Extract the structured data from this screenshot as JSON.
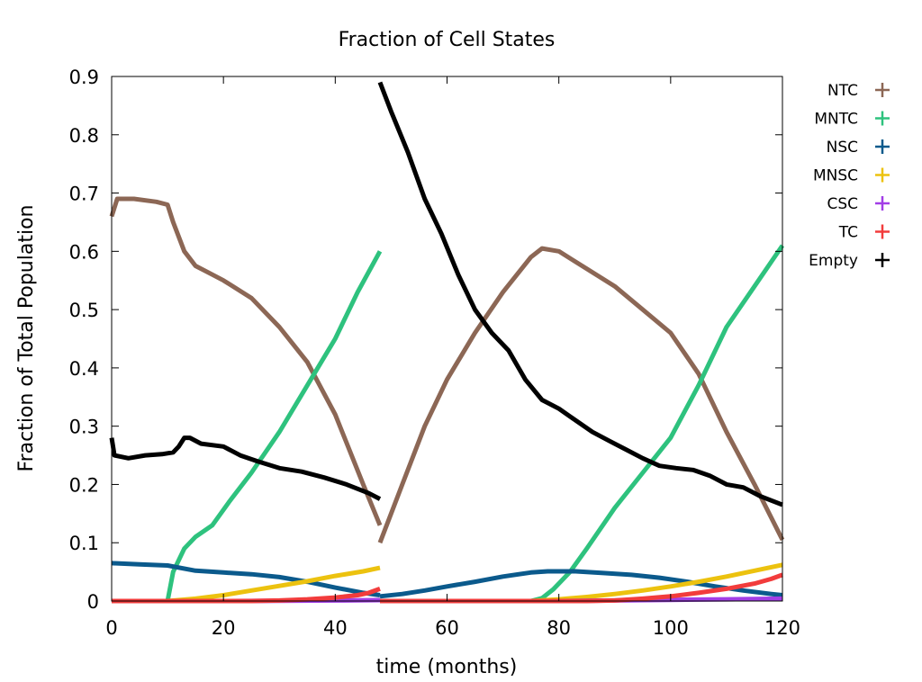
{
  "chart_data": {
    "type": "scatter",
    "title": "Fraction of Cell States",
    "xlabel": "time (months)",
    "ylabel": "Fraction of Total Population",
    "xlim": [
      0,
      120
    ],
    "ylim": [
      0,
      0.9
    ],
    "xticks": [
      "0",
      "20",
      "40",
      "60",
      "80",
      "100",
      "120"
    ],
    "yticks": [
      "0",
      "0.1",
      "0.2",
      "0.3",
      "0.4",
      "0.5",
      "0.6",
      "0.7",
      "0.8",
      "0.9"
    ],
    "grid": false,
    "legend_position": "outside-right",
    "series": [
      {
        "name": "NTC",
        "color": "#8c6755",
        "segments": [
          [
            [
              0,
              0.66
            ],
            [
              1,
              0.69
            ],
            [
              4,
              0.69
            ],
            [
              8,
              0.685
            ],
            [
              10,
              0.68
            ],
            [
              11,
              0.65
            ],
            [
              13,
              0.6
            ],
            [
              15,
              0.575
            ],
            [
              18,
              0.56
            ],
            [
              20,
              0.55
            ],
            [
              25,
              0.52
            ],
            [
              30,
              0.47
            ],
            [
              35,
              0.41
            ],
            [
              40,
              0.32
            ],
            [
              45,
              0.2
            ],
            [
              48,
              0.13
            ]
          ],
          [
            [
              48,
              0.1
            ],
            [
              52,
              0.2
            ],
            [
              56,
              0.3
            ],
            [
              60,
              0.38
            ],
            [
              65,
              0.46
            ],
            [
              70,
              0.53
            ],
            [
              75,
              0.59
            ],
            [
              77,
              0.605
            ],
            [
              80,
              0.6
            ],
            [
              85,
              0.57
            ],
            [
              90,
              0.54
            ],
            [
              95,
              0.5
            ],
            [
              100,
              0.46
            ],
            [
              105,
              0.39
            ],
            [
              110,
              0.29
            ],
            [
              115,
              0.2
            ],
            [
              120,
              0.105
            ]
          ]
        ]
      },
      {
        "name": "MNTC",
        "color": "#2ec27e",
        "segments": [
          [
            [
              10,
              0
            ],
            [
              11,
              0.05
            ],
            [
              13,
              0.09
            ],
            [
              15,
              0.11
            ],
            [
              18,
              0.13
            ],
            [
              21,
              0.17
            ],
            [
              25,
              0.22
            ],
            [
              30,
              0.29
            ],
            [
              35,
              0.37
            ],
            [
              40,
              0.45
            ],
            [
              44,
              0.53
            ],
            [
              48,
              0.6
            ]
          ],
          [
            [
              48,
              0
            ],
            [
              75,
              0
            ],
            [
              77,
              0.005
            ],
            [
              79,
              0.02
            ],
            [
              82,
              0.05
            ],
            [
              85,
              0.09
            ],
            [
              90,
              0.16
            ],
            [
              95,
              0.22
            ],
            [
              100,
              0.28
            ],
            [
              105,
              0.37
            ],
            [
              110,
              0.47
            ],
            [
              115,
              0.54
            ],
            [
              120,
              0.61
            ]
          ]
        ]
      },
      {
        "name": "NSC",
        "color": "#0b5a8c",
        "segments": [
          [
            [
              0,
              0.065
            ],
            [
              5,
              0.063
            ],
            [
              10,
              0.061
            ],
            [
              15,
              0.052
            ],
            [
              20,
              0.049
            ],
            [
              25,
              0.046
            ],
            [
              30,
              0.041
            ],
            [
              35,
              0.033
            ],
            [
              40,
              0.023
            ],
            [
              45,
              0.014
            ],
            [
              48,
              0.01
            ]
          ],
          [
            [
              48,
              0.008
            ],
            [
              52,
              0.012
            ],
            [
              56,
              0.018
            ],
            [
              60,
              0.025
            ],
            [
              65,
              0.033
            ],
            [
              70,
              0.042
            ],
            [
              75,
              0.049
            ],
            [
              78,
              0.051
            ],
            [
              83,
              0.051
            ],
            [
              88,
              0.048
            ],
            [
              93,
              0.045
            ],
            [
              98,
              0.04
            ],
            [
              103,
              0.033
            ],
            [
              108,
              0.025
            ],
            [
              113,
              0.018
            ],
            [
              118,
              0.012
            ],
            [
              120,
              0.01
            ]
          ]
        ]
      },
      {
        "name": "MNSC",
        "color": "#ecc20f",
        "segments": [
          [
            [
              10,
              0
            ],
            [
              15,
              0.004
            ],
            [
              20,
              0.01
            ],
            [
              25,
              0.018
            ],
            [
              30,
              0.026
            ],
            [
              35,
              0.034
            ],
            [
              40,
              0.043
            ],
            [
              45,
              0.051
            ],
            [
              48,
              0.057
            ]
          ],
          [
            [
              48,
              0
            ],
            [
              75,
              0
            ],
            [
              80,
              0.003
            ],
            [
              85,
              0.007
            ],
            [
              90,
              0.012
            ],
            [
              95,
              0.018
            ],
            [
              100,
              0.025
            ],
            [
              105,
              0.033
            ],
            [
              110,
              0.042
            ],
            [
              115,
              0.052
            ],
            [
              120,
              0.062
            ]
          ]
        ]
      },
      {
        "name": "CSC",
        "color": "#a23ee6",
        "segments": [
          [
            [
              0,
              0
            ],
            [
              20,
              0
            ],
            [
              30,
              0.0005
            ],
            [
              40,
              0.001
            ],
            [
              48,
              0.0015
            ]
          ],
          [
            [
              48,
              0
            ],
            [
              80,
              0
            ],
            [
              90,
              0.001
            ],
            [
              100,
              0.002
            ],
            [
              110,
              0.003
            ],
            [
              120,
              0.004
            ]
          ]
        ]
      },
      {
        "name": "TC",
        "color": "#f23c3c",
        "segments": [
          [
            [
              0,
              0
            ],
            [
              25,
              0
            ],
            [
              30,
              0.001
            ],
            [
              35,
              0.003
            ],
            [
              40,
              0.006
            ],
            [
              44,
              0.01
            ],
            [
              46,
              0.014
            ],
            [
              48,
              0.021
            ]
          ],
          [
            [
              48,
              0
            ],
            [
              85,
              0
            ],
            [
              90,
              0.001
            ],
            [
              95,
              0.004
            ],
            [
              100,
              0.008
            ],
            [
              105,
              0.014
            ],
            [
              110,
              0.021
            ],
            [
              115,
              0.03
            ],
            [
              118,
              0.038
            ],
            [
              120,
              0.045
            ]
          ]
        ]
      },
      {
        "name": "Empty",
        "color": "#000000",
        "segments": [
          [
            [
              0,
              0.28
            ],
            [
              0.5,
              0.25
            ],
            [
              3,
              0.245
            ],
            [
              6,
              0.25
            ],
            [
              9,
              0.252
            ],
            [
              11,
              0.255
            ],
            [
              12,
              0.265
            ],
            [
              13,
              0.28
            ],
            [
              14,
              0.28
            ],
            [
              16,
              0.27
            ],
            [
              20,
              0.265
            ],
            [
              23,
              0.25
            ],
            [
              26,
              0.24
            ],
            [
              30,
              0.228
            ],
            [
              34,
              0.222
            ],
            [
              38,
              0.212
            ],
            [
              42,
              0.2
            ],
            [
              46,
              0.185
            ],
            [
              48,
              0.175
            ]
          ],
          [
            [
              48,
              0.89
            ],
            [
              50,
              0.84
            ],
            [
              53,
              0.77
            ],
            [
              56,
              0.69
            ],
            [
              59,
              0.63
            ],
            [
              62,
              0.56
            ],
            [
              65,
              0.5
            ],
            [
              68,
              0.46
            ],
            [
              71,
              0.43
            ],
            [
              74,
              0.38
            ],
            [
              77,
              0.345
            ],
            [
              80,
              0.33
            ],
            [
              83,
              0.31
            ],
            [
              86,
              0.29
            ],
            [
              89,
              0.275
            ],
            [
              92,
              0.26
            ],
            [
              95,
              0.245
            ],
            [
              98,
              0.232
            ],
            [
              101,
              0.228
            ],
            [
              104,
              0.225
            ],
            [
              107,
              0.215
            ],
            [
              110,
              0.2
            ],
            [
              113,
              0.195
            ],
            [
              116,
              0.18
            ],
            [
              120,
              0.165
            ]
          ]
        ]
      }
    ]
  }
}
